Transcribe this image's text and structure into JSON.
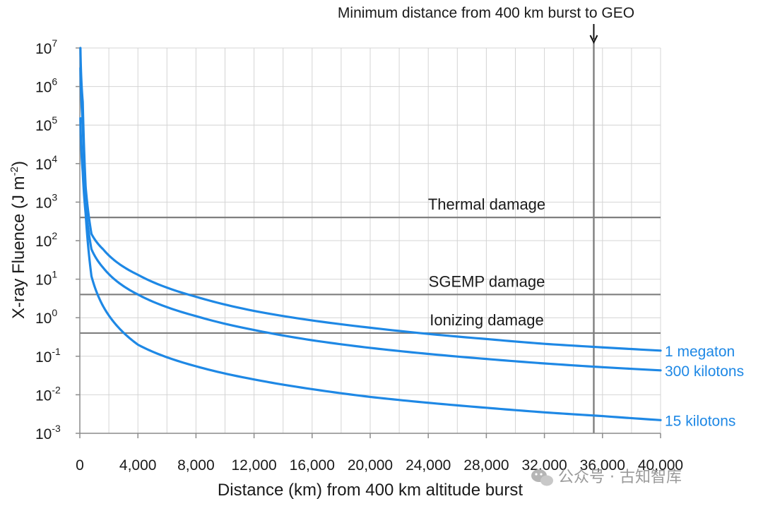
{
  "chart_data": {
    "type": "line",
    "xlabel": "Distance (km) from 400 km altitude burst",
    "ylabel": "X-ray Fluence (J m",
    "ylabel_sup": "-2",
    "ylabel_tail": ")",
    "xlim": [
      0,
      40000
    ],
    "ylim_exp": [
      -3,
      7
    ],
    "y_scale": "log",
    "grid": true,
    "x_ticks": [
      "0",
      "4,000",
      "8,000",
      "12,000",
      "16,000",
      "20,000",
      "24,000",
      "28,000",
      "32,000",
      "36,000",
      "40,000"
    ],
    "x_tick_values": [
      0,
      4000,
      8000,
      12000,
      16000,
      20000,
      24000,
      28000,
      32000,
      36000,
      40000
    ],
    "y_tick_base": "10",
    "y_tick_exponents": [
      "7",
      "6",
      "5",
      "4",
      "3",
      "2",
      "1",
      "0",
      "-1",
      "-2",
      "-3"
    ],
    "series_color": "#1e88e5",
    "series": [
      {
        "name": "1 megaton",
        "x": [
          40,
          100,
          200,
          400,
          800,
          1600,
          4000,
          8000,
          12000,
          16000,
          20000,
          24000,
          28000,
          32000,
          36000,
          40000
        ],
        "y": [
          10000000,
          1600000,
          400000,
          2500,
          150,
          60,
          13,
          3.5,
          1.5,
          0.85,
          0.55,
          0.38,
          0.28,
          0.21,
          0.17,
          0.14
        ]
      },
      {
        "name": "300 kilotons",
        "x": [
          40,
          100,
          200,
          400,
          800,
          1600,
          4000,
          8000,
          12000,
          16000,
          20000,
          24000,
          28000,
          32000,
          36000,
          40000
        ],
        "y": [
          3000000,
          480000,
          120000,
          800,
          60,
          20,
          4,
          1.1,
          0.48,
          0.26,
          0.165,
          0.115,
          0.085,
          0.065,
          0.052,
          0.043
        ]
      },
      {
        "name": "15 kilotons",
        "x": [
          40,
          100,
          200,
          400,
          800,
          1600,
          4000,
          8000,
          12000,
          16000,
          20000,
          24000,
          28000,
          32000,
          36000,
          40000
        ],
        "y": [
          150000,
          24000,
          6000,
          500,
          12,
          2,
          0.2,
          0.055,
          0.025,
          0.014,
          0.0088,
          0.0062,
          0.0046,
          0.0035,
          0.0028,
          0.0022
        ]
      }
    ],
    "reference_lines": [
      {
        "label": "Thermal damage",
        "y": 400
      },
      {
        "label": "SGEMP damage",
        "y": 4
      },
      {
        "label": "Ionizing damage",
        "y": 0.4
      }
    ],
    "vertical_marker": {
      "x": 35400,
      "label": "Minimum distance from 400 km burst to GEO"
    }
  },
  "colors": {
    "series": "#1e88e5",
    "reference": "#7f7f7f",
    "grid": "#d4d4d4",
    "axis": "#8c8c8c"
  },
  "watermark": {
    "icon": "wechat-icon",
    "text": "公众号 · 古知智库"
  }
}
